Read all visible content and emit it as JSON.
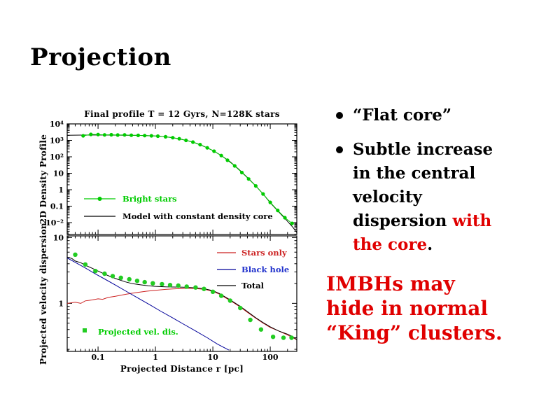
{
  "slide": {
    "title": "Projection",
    "bullets": {
      "item1": "“Flat core”",
      "item2_black": "Subtle increase in the central velocity dispersion ",
      "item2_red": "with the core",
      "item2_end": "."
    },
    "highlight_lines": [
      "IMBHs may",
      "hide in normal",
      "“King” clusters."
    ],
    "colors": {
      "background": "#ffffff",
      "text": "#000000",
      "accent_red": "#e00000",
      "green": "#00cc00",
      "blue": "#2233cc"
    }
  },
  "chart_data": [
    {
      "type": "line",
      "title": "Final profile T = 12 Gyrs, N=128K stars",
      "ylabel": "2D Density Profile",
      "xscale": "log",
      "yscale": "log",
      "xlim": [
        0.029,
        290
      ],
      "ylim": [
        0.0019,
        10000
      ],
      "grid": false,
      "legend_position": "center-left",
      "yticks": [
        {
          "v": 10000,
          "label": "10⁴"
        },
        {
          "v": 1000,
          "label": "10³"
        },
        {
          "v": 100,
          "label": "10²"
        },
        {
          "v": 10,
          "label": "10"
        },
        {
          "v": 1,
          "label": "1"
        },
        {
          "v": 0.1,
          "label": "0.1"
        },
        {
          "v": 0.01,
          "label": "10⁻²"
        }
      ],
      "series": [
        {
          "name": "Bright stars",
          "color": "#00cc00",
          "line": true,
          "marker": true,
          "marker_size": 2.6,
          "points": [
            [
              0.055,
              1900
            ],
            [
              0.075,
              2300
            ],
            [
              0.1,
              2250
            ],
            [
              0.13,
              2150
            ],
            [
              0.17,
              2200
            ],
            [
              0.22,
              2100
            ],
            [
              0.29,
              2150
            ],
            [
              0.38,
              2050
            ],
            [
              0.5,
              2000
            ],
            [
              0.65,
              1950
            ],
            [
              0.85,
              1900
            ],
            [
              1.1,
              1800
            ],
            [
              1.5,
              1650
            ],
            [
              2,
              1450
            ],
            [
              2.6,
              1250
            ],
            [
              3.4,
              1000
            ],
            [
              4.5,
              780
            ],
            [
              6,
              550
            ],
            [
              8,
              350
            ],
            [
              10.5,
              220
            ],
            [
              14,
              120
            ],
            [
              18,
              62
            ],
            [
              24,
              28
            ],
            [
              32,
              11
            ],
            [
              42,
              4.5
            ],
            [
              56,
              1.7
            ],
            [
              75,
              0.55
            ],
            [
              100,
              0.17
            ],
            [
              135,
              0.055
            ],
            [
              180,
              0.02
            ],
            [
              240,
              0.009
            ]
          ]
        },
        {
          "name": "Model with constant density core",
          "color": "#000000",
          "line": true,
          "marker": false,
          "points": [
            [
              0.029,
              2050
            ],
            [
              0.05,
              2080
            ],
            [
              0.08,
              2100
            ],
            [
              0.12,
              2100
            ],
            [
              0.2,
              2080
            ],
            [
              0.3,
              2050
            ],
            [
              0.5,
              2000
            ],
            [
              0.7,
              1950
            ],
            [
              1,
              1850
            ],
            [
              1.5,
              1650
            ],
            [
              2,
              1450
            ],
            [
              3,
              1100
            ],
            [
              4,
              870
            ],
            [
              5,
              680
            ],
            [
              7,
              430
            ],
            [
              10,
              240
            ],
            [
              14,
              120
            ],
            [
              20,
              50
            ],
            [
              28,
              18
            ],
            [
              40,
              5.5
            ],
            [
              55,
              1.8
            ],
            [
              75,
              0.55
            ],
            [
              100,
              0.16
            ],
            [
              140,
              0.045
            ],
            [
              200,
              0.012
            ],
            [
              250,
              0.005
            ],
            [
              290,
              0.0025
            ]
          ]
        }
      ]
    },
    {
      "type": "line",
      "title": "",
      "xlabel": "Projected Distance r [pc]",
      "ylabel": "Projected velocity dispersion",
      "xscale": "log",
      "yscale": "log",
      "xlim": [
        0.029,
        290
      ],
      "ylim": [
        0.186,
        10.6
      ],
      "grid": false,
      "legend_position": "upper-right",
      "xticks": [
        {
          "v": 0.1,
          "label": "0.1"
        },
        {
          "v": 1,
          "label": "1"
        },
        {
          "v": 10,
          "label": "10"
        },
        {
          "v": 100,
          "label": "100"
        }
      ],
      "yticks": [
        {
          "v": 10,
          "label": "10"
        },
        {
          "v": 1,
          "label": "1"
        }
      ],
      "series": [
        {
          "name": "Stars only",
          "color": "#cc2222",
          "line": true,
          "marker": false,
          "points": [
            [
              0.029,
              1.0
            ],
            [
              0.04,
              1.04
            ],
            [
              0.05,
              1.0
            ],
            [
              0.06,
              1.09
            ],
            [
              0.08,
              1.13
            ],
            [
              0.1,
              1.17
            ],
            [
              0.12,
              1.15
            ],
            [
              0.15,
              1.23
            ],
            [
              0.2,
              1.28
            ],
            [
              0.3,
              1.37
            ],
            [
              0.4,
              1.43
            ],
            [
              0.5,
              1.47
            ],
            [
              0.7,
              1.53
            ],
            [
              1,
              1.58
            ],
            [
              1.5,
              1.63
            ],
            [
              2,
              1.66
            ],
            [
              3,
              1.68
            ],
            [
              4,
              1.69
            ],
            [
              5,
              1.68
            ],
            [
              7,
              1.64
            ],
            [
              10,
              1.52
            ],
            [
              13,
              1.38
            ],
            [
              17,
              1.2
            ],
            [
              22,
              1.05
            ],
            [
              30,
              0.88
            ],
            [
              40,
              0.73
            ],
            [
              55,
              0.6
            ],
            [
              75,
              0.5
            ],
            [
              100,
              0.43
            ],
            [
              140,
              0.38
            ],
            [
              200,
              0.33
            ],
            [
              290,
              0.28
            ]
          ]
        },
        {
          "name": "Black hole",
          "color": "#000099",
          "legend_color": "#2233cc",
          "line": true,
          "marker": false,
          "points": [
            [
              0.029,
              4.9
            ],
            [
              0.04,
              4.2
            ],
            [
              0.06,
              3.45
            ],
            [
              0.09,
              2.8
            ],
            [
              0.13,
              2.35
            ],
            [
              0.2,
              1.9
            ],
            [
              0.3,
              1.55
            ],
            [
              0.5,
              1.2
            ],
            [
              0.8,
              0.95
            ],
            [
              1.2,
              0.77
            ],
            [
              2,
              0.6
            ],
            [
              3,
              0.49
            ],
            [
              5,
              0.38
            ],
            [
              8,
              0.3
            ],
            [
              12,
              0.24
            ],
            [
              19,
              0.195
            ]
          ]
        },
        {
          "name": "Total",
          "color": "#000000",
          "line": true,
          "marker": false,
          "points": [
            [
              0.029,
              5.05
            ],
            [
              0.035,
              4.8
            ],
            [
              0.04,
              4.4
            ],
            [
              0.05,
              4.15
            ],
            [
              0.06,
              3.8
            ],
            [
              0.08,
              3.4
            ],
            [
              0.1,
              3.1
            ],
            [
              0.13,
              2.78
            ],
            [
              0.17,
              2.52
            ],
            [
              0.22,
              2.32
            ],
            [
              0.3,
              2.12
            ],
            [
              0.4,
              1.99
            ],
            [
              0.55,
              1.91
            ],
            [
              0.75,
              1.85
            ],
            [
              1,
              1.81
            ],
            [
              1.5,
              1.78
            ],
            [
              2,
              1.77
            ],
            [
              3,
              1.76
            ],
            [
              4,
              1.74
            ],
            [
              5,
              1.72
            ],
            [
              7,
              1.67
            ],
            [
              10,
              1.56
            ],
            [
              13,
              1.41
            ],
            [
              17,
              1.23
            ],
            [
              22,
              1.07
            ],
            [
              30,
              0.9
            ],
            [
              40,
              0.75
            ],
            [
              55,
              0.61
            ],
            [
              75,
              0.51
            ],
            [
              100,
              0.44
            ],
            [
              140,
              0.38
            ],
            [
              200,
              0.34
            ],
            [
              250,
              0.31
            ],
            [
              290,
              0.28
            ]
          ]
        },
        {
          "name": "Projected vel. dis.",
          "color": "#22cc22",
          "legend_color": "#00cc00",
          "line": false,
          "marker": true,
          "marker_size": 3.2,
          "points": [
            [
              0.04,
              5.5
            ],
            [
              0.06,
              3.9
            ],
            [
              0.09,
              3.1
            ],
            [
              0.13,
              2.82
            ],
            [
              0.18,
              2.6
            ],
            [
              0.25,
              2.45
            ],
            [
              0.35,
              2.32
            ],
            [
              0.48,
              2.2
            ],
            [
              0.65,
              2.1
            ],
            [
              0.9,
              2.02
            ],
            [
              1.3,
              1.96
            ],
            [
              1.8,
              1.9
            ],
            [
              2.5,
              1.86
            ],
            [
              3.5,
              1.8
            ],
            [
              5,
              1.74
            ],
            [
              7,
              1.66
            ],
            [
              10,
              1.5
            ],
            [
              14,
              1.3
            ],
            [
              20,
              1.1
            ],
            [
              30,
              0.85
            ],
            [
              45,
              0.56
            ],
            [
              69,
              0.4
            ],
            [
              112,
              0.31
            ],
            [
              170,
              0.3
            ],
            [
              235,
              0.3
            ]
          ]
        }
      ]
    }
  ]
}
